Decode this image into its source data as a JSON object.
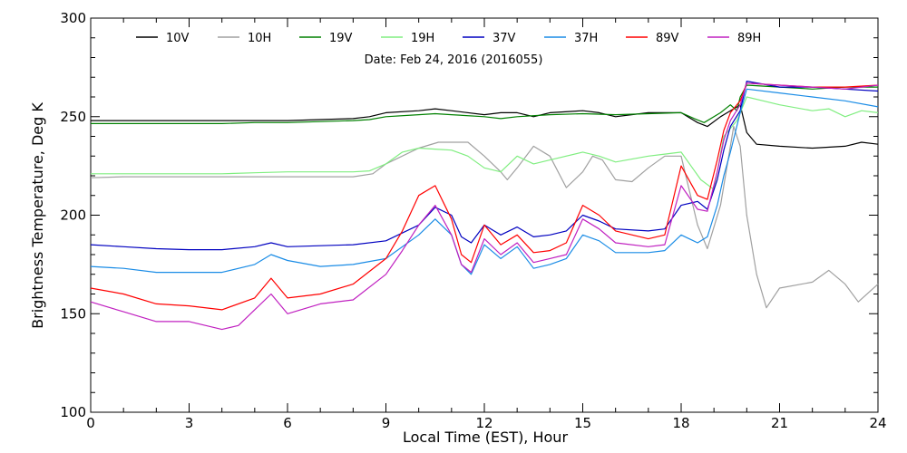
{
  "chart_data": {
    "type": "line",
    "subtitle": "Date: Feb 24, 2016 (2016055)",
    "xlabel": "Local Time (EST), Hour",
    "ylabel": "Brightness Temperature, Deg K",
    "xlim": [
      0,
      24
    ],
    "ylim": [
      100,
      300
    ],
    "x_ticks": [
      0,
      3,
      6,
      9,
      12,
      15,
      18,
      21,
      24
    ],
    "y_ticks": [
      100,
      150,
      200,
      250,
      300
    ],
    "legend_position": "top",
    "grid": false,
    "series": [
      {
        "name": "10V",
        "color": "#000000",
        "points": [
          [
            0,
            248
          ],
          [
            1,
            248
          ],
          [
            2,
            248
          ],
          [
            3,
            248
          ],
          [
            4,
            248
          ],
          [
            5,
            248
          ],
          [
            6,
            248
          ],
          [
            7,
            248.5
          ],
          [
            8,
            249
          ],
          [
            8.5,
            250
          ],
          [
            9,
            252
          ],
          [
            10,
            253
          ],
          [
            10.5,
            254
          ],
          [
            11,
            253
          ],
          [
            12,
            251
          ],
          [
            12.5,
            252
          ],
          [
            13,
            252
          ],
          [
            13.5,
            250
          ],
          [
            14,
            252
          ],
          [
            15,
            253
          ],
          [
            15.5,
            252
          ],
          [
            16,
            250
          ],
          [
            17,
            252
          ],
          [
            18,
            252
          ],
          [
            18.5,
            247
          ],
          [
            18.8,
            245
          ],
          [
            19.2,
            250
          ],
          [
            19.6,
            254
          ],
          [
            19.8,
            256
          ],
          [
            20,
            242
          ],
          [
            20.3,
            236
          ],
          [
            21,
            235
          ],
          [
            22,
            234
          ],
          [
            23,
            235
          ],
          [
            23.5,
            237
          ],
          [
            24,
            236
          ]
        ]
      },
      {
        "name": "10H",
        "color": "#a0a0a0",
        "points": [
          [
            0,
            219
          ],
          [
            1,
            219.5
          ],
          [
            2,
            219.5
          ],
          [
            3,
            219.5
          ],
          [
            4,
            219.5
          ],
          [
            5,
            219.5
          ],
          [
            6,
            219.5
          ],
          [
            7,
            219.5
          ],
          [
            8,
            219.5
          ],
          [
            8.6,
            221
          ],
          [
            9,
            226
          ],
          [
            10,
            234
          ],
          [
            10.6,
            237
          ],
          [
            11,
            237
          ],
          [
            11.5,
            237
          ],
          [
            12,
            230
          ],
          [
            12.5,
            222
          ],
          [
            12.7,
            218
          ],
          [
            13,
            224
          ],
          [
            13.5,
            235
          ],
          [
            14,
            230
          ],
          [
            14.5,
            214
          ],
          [
            15,
            222
          ],
          [
            15.3,
            230
          ],
          [
            15.6,
            228
          ],
          [
            16,
            218
          ],
          [
            16.5,
            217
          ],
          [
            17,
            224
          ],
          [
            17.5,
            230
          ],
          [
            18,
            230
          ],
          [
            18.5,
            195
          ],
          [
            18.8,
            183
          ],
          [
            19.2,
            205
          ],
          [
            19.6,
            245
          ],
          [
            19.8,
            235
          ],
          [
            20,
            200
          ],
          [
            20.3,
            170
          ],
          [
            20.6,
            153
          ],
          [
            21,
            163
          ],
          [
            22,
            166
          ],
          [
            22.5,
            172
          ],
          [
            23,
            165
          ],
          [
            23.4,
            156
          ],
          [
            24,
            165
          ]
        ]
      },
      {
        "name": "19V",
        "color": "#008000",
        "points": [
          [
            0,
            246.5
          ],
          [
            1,
            246.5
          ],
          [
            2,
            246.5
          ],
          [
            3,
            246.5
          ],
          [
            4,
            246.5
          ],
          [
            5,
            247
          ],
          [
            6,
            247
          ],
          [
            7,
            247.5
          ],
          [
            8,
            248
          ],
          [
            8.5,
            248.5
          ],
          [
            9,
            250
          ],
          [
            10,
            251
          ],
          [
            10.5,
            251.5
          ],
          [
            11,
            251
          ],
          [
            12,
            250
          ],
          [
            12.5,
            249
          ],
          [
            13,
            250
          ],
          [
            14,
            251
          ],
          [
            15,
            251.5
          ],
          [
            16,
            251
          ],
          [
            17,
            251.5
          ],
          [
            18,
            252
          ],
          [
            18.4,
            249
          ],
          [
            18.7,
            247
          ],
          [
            19.2,
            252
          ],
          [
            19.5,
            256
          ],
          [
            19.7,
            253
          ],
          [
            19.8,
            260
          ],
          [
            20,
            266
          ],
          [
            21,
            265
          ],
          [
            22,
            264
          ],
          [
            23,
            265
          ],
          [
            24,
            265
          ]
        ]
      },
      {
        "name": "19H",
        "color": "#80ee80",
        "points": [
          [
            0,
            221
          ],
          [
            1,
            221
          ],
          [
            2,
            221
          ],
          [
            3,
            221
          ],
          [
            4,
            221
          ],
          [
            5,
            221.5
          ],
          [
            6,
            222
          ],
          [
            7,
            222
          ],
          [
            8,
            222
          ],
          [
            8.5,
            222.5
          ],
          [
            9,
            226
          ],
          [
            9.5,
            232
          ],
          [
            10,
            234
          ],
          [
            10.5,
            233.5
          ],
          [
            11,
            233
          ],
          [
            11.5,
            230
          ],
          [
            12,
            224
          ],
          [
            12.5,
            222
          ],
          [
            13,
            230
          ],
          [
            13.5,
            226
          ],
          [
            14,
            228
          ],
          [
            15,
            232
          ],
          [
            15.5,
            230
          ],
          [
            16,
            227
          ],
          [
            17,
            230
          ],
          [
            17.5,
            231
          ],
          [
            18,
            232
          ],
          [
            18.6,
            218
          ],
          [
            19,
            213
          ],
          [
            19.3,
            240
          ],
          [
            19.7,
            248
          ],
          [
            20,
            260
          ],
          [
            20.5,
            258
          ],
          [
            21,
            256
          ],
          [
            22,
            253
          ],
          [
            22.5,
            254
          ],
          [
            23,
            250
          ],
          [
            23.5,
            253
          ],
          [
            24,
            252
          ]
        ]
      },
      {
        "name": "37V",
        "color": "#0000c0",
        "points": [
          [
            0,
            185
          ],
          [
            1,
            184
          ],
          [
            2,
            183
          ],
          [
            3,
            182.5
          ],
          [
            4,
            182.5
          ],
          [
            5,
            184
          ],
          [
            5.5,
            186
          ],
          [
            6,
            184
          ],
          [
            7,
            184.5
          ],
          [
            8,
            185
          ],
          [
            9,
            187
          ],
          [
            10,
            195
          ],
          [
            10.5,
            204
          ],
          [
            11,
            200
          ],
          [
            11.3,
            189
          ],
          [
            11.6,
            186
          ],
          [
            12,
            195
          ],
          [
            12.5,
            190
          ],
          [
            13,
            194
          ],
          [
            13.5,
            189
          ],
          [
            14,
            190
          ],
          [
            14.5,
            192
          ],
          [
            15,
            200
          ],
          [
            15.5,
            197
          ],
          [
            16,
            193
          ],
          [
            17,
            192
          ],
          [
            17.5,
            193
          ],
          [
            18,
            205
          ],
          [
            18.5,
            207
          ],
          [
            18.8,
            203
          ],
          [
            19.1,
            218
          ],
          [
            19.3,
            233
          ],
          [
            19.5,
            245
          ],
          [
            19.8,
            253
          ],
          [
            20,
            268
          ],
          [
            21,
            265
          ],
          [
            22,
            265
          ],
          [
            23,
            264
          ],
          [
            24,
            263
          ]
        ]
      },
      {
        "name": "37H",
        "color": "#1a8ce6",
        "points": [
          [
            0,
            174
          ],
          [
            1,
            173
          ],
          [
            2,
            171
          ],
          [
            3,
            171
          ],
          [
            4,
            171
          ],
          [
            5,
            175
          ],
          [
            5.5,
            180
          ],
          [
            6,
            177
          ],
          [
            7,
            174
          ],
          [
            8,
            175
          ],
          [
            9,
            178
          ],
          [
            10,
            190
          ],
          [
            10.5,
            198
          ],
          [
            11,
            190
          ],
          [
            11.3,
            175
          ],
          [
            11.6,
            170
          ],
          [
            12,
            185
          ],
          [
            12.5,
            178
          ],
          [
            13,
            184
          ],
          [
            13.5,
            173
          ],
          [
            14,
            175
          ],
          [
            14.5,
            178
          ],
          [
            15,
            190
          ],
          [
            15.5,
            187
          ],
          [
            16,
            181
          ],
          [
            17,
            181
          ],
          [
            17.5,
            182
          ],
          [
            18,
            190
          ],
          [
            18.5,
            186
          ],
          [
            18.8,
            189
          ],
          [
            19.1,
            205
          ],
          [
            19.3,
            220
          ],
          [
            19.5,
            232
          ],
          [
            19.8,
            252
          ],
          [
            20,
            264
          ],
          [
            21,
            262
          ],
          [
            22,
            260
          ],
          [
            23,
            258
          ],
          [
            24,
            255
          ]
        ]
      },
      {
        "name": "89V",
        "color": "#ff0000",
        "points": [
          [
            0,
            163
          ],
          [
            1,
            160
          ],
          [
            2,
            155
          ],
          [
            3,
            154
          ],
          [
            4,
            152
          ],
          [
            5,
            158
          ],
          [
            5.5,
            168
          ],
          [
            6,
            158
          ],
          [
            7,
            160
          ],
          [
            8,
            165
          ],
          [
            9,
            178
          ],
          [
            9.5,
            192
          ],
          [
            10,
            210
          ],
          [
            10.5,
            215
          ],
          [
            11,
            198
          ],
          [
            11.3,
            180
          ],
          [
            11.6,
            176
          ],
          [
            12,
            195
          ],
          [
            12.5,
            185
          ],
          [
            13,
            190
          ],
          [
            13.5,
            181
          ],
          [
            14,
            182
          ],
          [
            14.5,
            186
          ],
          [
            15,
            205
          ],
          [
            15.5,
            200
          ],
          [
            16,
            192
          ],
          [
            17,
            188
          ],
          [
            17.5,
            190
          ],
          [
            18,
            225
          ],
          [
            18.5,
            210
          ],
          [
            18.8,
            208
          ],
          [
            19.1,
            228
          ],
          [
            19.3,
            243
          ],
          [
            19.5,
            252
          ],
          [
            19.8,
            258
          ],
          [
            20,
            267
          ],
          [
            21,
            266
          ],
          [
            22,
            265
          ],
          [
            23,
            265
          ],
          [
            24,
            266
          ]
        ]
      },
      {
        "name": "89H",
        "color": "#c020c0",
        "points": [
          [
            0,
            156
          ],
          [
            1,
            151
          ],
          [
            2,
            146
          ],
          [
            3,
            146
          ],
          [
            4,
            142
          ],
          [
            4.5,
            144
          ],
          [
            5,
            152
          ],
          [
            5.5,
            160
          ],
          [
            6,
            150
          ],
          [
            7,
            155
          ],
          [
            8,
            157
          ],
          [
            9,
            170
          ],
          [
            9.5,
            182
          ],
          [
            10,
            195
          ],
          [
            10.5,
            205
          ],
          [
            11,
            190
          ],
          [
            11.3,
            175
          ],
          [
            11.6,
            171
          ],
          [
            12,
            188
          ],
          [
            12.5,
            180
          ],
          [
            13,
            186
          ],
          [
            13.5,
            176
          ],
          [
            14,
            178
          ],
          [
            14.5,
            180
          ],
          [
            15,
            198
          ],
          [
            15.5,
            193
          ],
          [
            16,
            186
          ],
          [
            17,
            184
          ],
          [
            17.5,
            185
          ],
          [
            18,
            215
          ],
          [
            18.5,
            203
          ],
          [
            18.8,
            202
          ],
          [
            19.1,
            222
          ],
          [
            19.3,
            238
          ],
          [
            19.5,
            248
          ],
          [
            19.8,
            256
          ],
          [
            20,
            267
          ],
          [
            21,
            266
          ],
          [
            22,
            265
          ],
          [
            23,
            264
          ],
          [
            24,
            266
          ]
        ]
      }
    ]
  }
}
